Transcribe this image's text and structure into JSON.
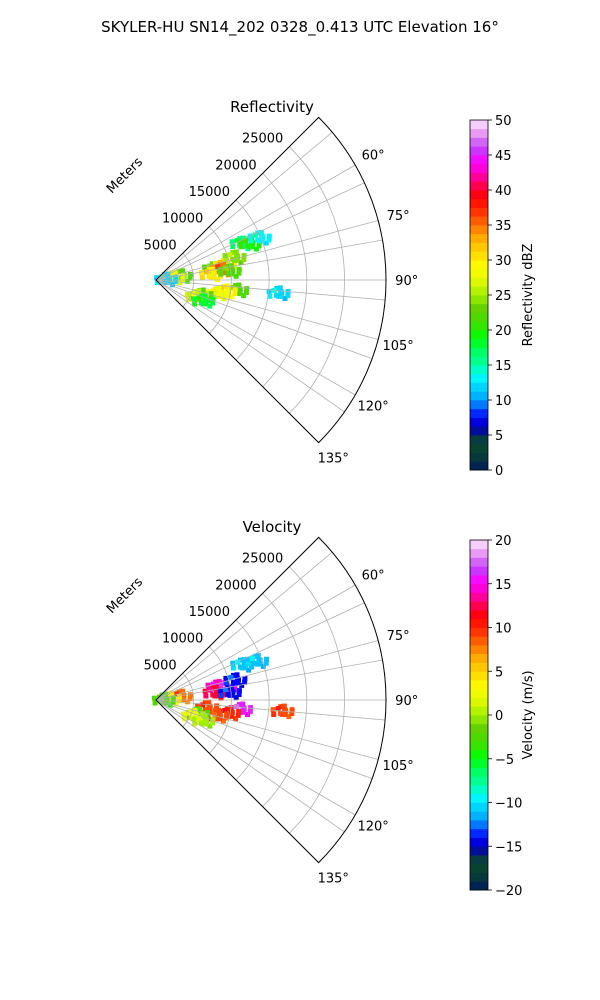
{
  "figure": {
    "suptitle": "SKYLER-HU  SN14_202  0328_0.413 UTC Elevation 16°"
  },
  "chart_data": [
    {
      "type": "heatmap",
      "projection": "polar-sector",
      "title": "Reflectivity",
      "radial_label": "Meters",
      "radial_ticks": [
        5000,
        10000,
        15000,
        20000,
        25000
      ],
      "radial_tick_labels": [
        "5000",
        "10000",
        "15000",
        "20000",
        "25000"
      ],
      "r_range": [
        0,
        25000
      ],
      "azimuth_range_deg": [
        45,
        135
      ],
      "azimuth_ticks": [
        60,
        75,
        90,
        105,
        120,
        135
      ],
      "azimuth_tick_labels": [
        "60°",
        "75°",
        "90°",
        "105°",
        "120°",
        "135°"
      ],
      "grid": true,
      "colorbar": {
        "label": "Reflectivity dBZ",
        "range": [
          0,
          50
        ],
        "ticks": [
          0,
          5,
          10,
          15,
          20,
          25,
          30,
          35,
          40,
          45,
          50
        ],
        "tick_labels": [
          "0",
          "5",
          "10",
          "15",
          "20",
          "25",
          "30",
          "35",
          "40",
          "45",
          "50"
        ]
      },
      "cells": [
        {
          "az_deg": 67,
          "r_m": 12500,
          "value": 16
        },
        {
          "az_deg": 69,
          "r_m": 13500,
          "value": 20
        },
        {
          "az_deg": 68,
          "r_m": 15000,
          "value": 13
        },
        {
          "az_deg": 79,
          "r_m": 8000,
          "value": 22
        },
        {
          "az_deg": 78,
          "r_m": 9500,
          "value": 30
        },
        {
          "az_deg": 74,
          "r_m": 11000,
          "value": 24
        },
        {
          "az_deg": 81,
          "r_m": 9000,
          "value": 35
        },
        {
          "az_deg": 84,
          "r_m": 7500,
          "value": 30
        },
        {
          "az_deg": 83,
          "r_m": 10000,
          "value": 22
        },
        {
          "az_deg": 81,
          "r_m": 3500,
          "value": 22
        },
        {
          "az_deg": 82,
          "r_m": 2500,
          "value": 28
        },
        {
          "az_deg": 86,
          "r_m": 1500,
          "value": 12
        },
        {
          "az_deg": 97,
          "r_m": 11000,
          "value": 22
        },
        {
          "az_deg": 99,
          "r_m": 9500,
          "value": 30
        },
        {
          "az_deg": 102,
          "r_m": 8500,
          "value": 28
        },
        {
          "az_deg": 108,
          "r_m": 6500,
          "value": 22
        },
        {
          "az_deg": 111,
          "r_m": 6000,
          "value": 26
        },
        {
          "az_deg": 113,
          "r_m": 7000,
          "value": 18
        },
        {
          "az_deg": 96,
          "r_m": 16500,
          "value": 12
        }
      ]
    },
    {
      "type": "heatmap",
      "projection": "polar-sector",
      "title": "Velocity",
      "radial_label": "Meters",
      "radial_ticks": [
        5000,
        10000,
        15000,
        20000,
        25000
      ],
      "radial_tick_labels": [
        "5000",
        "10000",
        "15000",
        "20000",
        "25000"
      ],
      "r_range": [
        0,
        25000
      ],
      "azimuth_range_deg": [
        45,
        135
      ],
      "azimuth_ticks": [
        60,
        75,
        90,
        105,
        120,
        135
      ],
      "azimuth_tick_labels": [
        "60°",
        "75°",
        "90°",
        "105°",
        "120°",
        "135°"
      ],
      "grid": true,
      "colorbar": {
        "label": "Velocity (m/s)",
        "range": [
          -20,
          20
        ],
        "ticks": [
          -20,
          -15,
          -10,
          -5,
          0,
          5,
          10,
          15,
          20
        ],
        "tick_labels": [
          "−20",
          "−15",
          "−10",
          "−5",
          "0",
          "5",
          "10",
          "15",
          "20"
        ]
      },
      "cells": [
        {
          "az_deg": 68,
          "r_m": 12500,
          "value": -11
        },
        {
          "az_deg": 69,
          "r_m": 14500,
          "value": -11
        },
        {
          "az_deg": 78,
          "r_m": 8500,
          "value": 14
        },
        {
          "az_deg": 80,
          "r_m": 9500,
          "value": 15
        },
        {
          "az_deg": 76,
          "r_m": 11000,
          "value": -14
        },
        {
          "az_deg": 83,
          "r_m": 8000,
          "value": 12
        },
        {
          "az_deg": 84,
          "r_m": 10000,
          "value": -14
        },
        {
          "az_deg": 82,
          "r_m": 3500,
          "value": 8
        },
        {
          "az_deg": 84,
          "r_m": 2000,
          "value": 4
        },
        {
          "az_deg": 88,
          "r_m": 1200,
          "value": -3
        },
        {
          "az_deg": 96,
          "r_m": 11500,
          "value": 16
        },
        {
          "az_deg": 100,
          "r_m": 10000,
          "value": 10
        },
        {
          "az_deg": 104,
          "r_m": 8500,
          "value": 9
        },
        {
          "az_deg": 98,
          "r_m": 7000,
          "value": 9
        },
        {
          "az_deg": 108,
          "r_m": 6000,
          "value": -3
        },
        {
          "az_deg": 112,
          "r_m": 5500,
          "value": 2
        },
        {
          "az_deg": 113,
          "r_m": 7000,
          "value": 0
        },
        {
          "az_deg": 95,
          "r_m": 17000,
          "value": 9
        }
      ]
    }
  ]
}
